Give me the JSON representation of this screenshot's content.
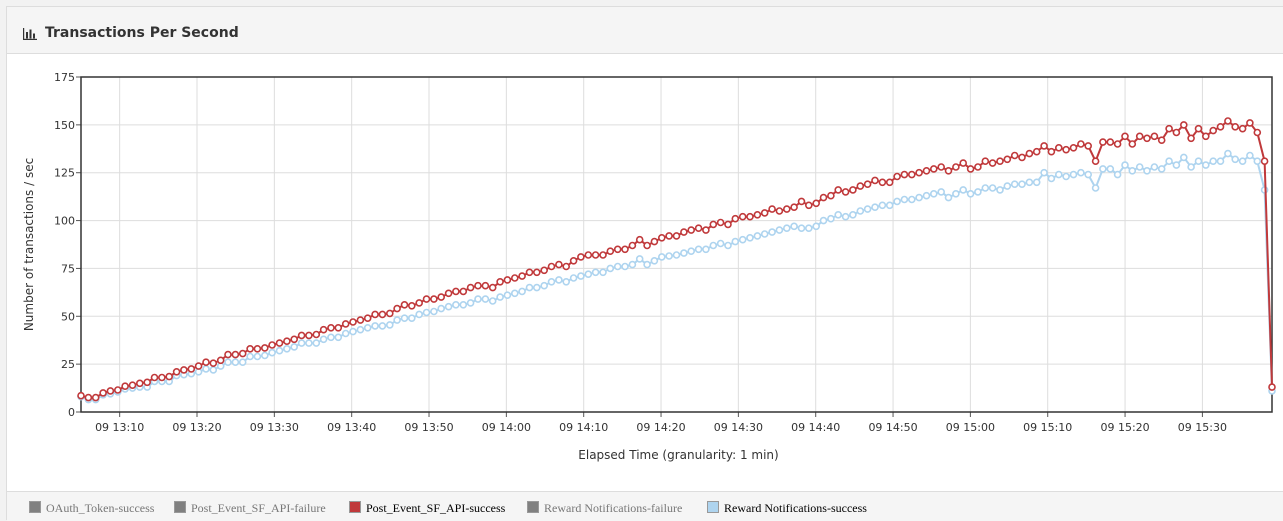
{
  "panel": {
    "title": "Transactions Per Second",
    "icon": "bar-chart-icon"
  },
  "chart_data": {
    "type": "line",
    "title": "",
    "xlabel": "Elapsed Time (granularity: 1 min)",
    "ylabel": "Number of transactions / sec",
    "ylim": [
      0,
      175
    ],
    "yticks": [
      "0",
      "25",
      "50",
      "75",
      "100",
      "125",
      "150",
      "175"
    ],
    "x_start": "09 13:05",
    "x_end": "09 15:39",
    "xticks": [
      "09 13:10",
      "09 13:20",
      "09 13:30",
      "09 13:40",
      "09 13:50",
      "09 14:00",
      "09 14:10",
      "09 14:20",
      "09 14:30",
      "09 14:40",
      "09 14:50",
      "09 15:00",
      "09 15:10",
      "09 15:20",
      "09 15:30"
    ],
    "grid": true,
    "legend_position": "bottom",
    "series": [
      {
        "name": "Post_Event_SF_API-success",
        "color": "#c0393b",
        "values": [
          8.5,
          7.5,
          7.5,
          10,
          11,
          11.5,
          13.5,
          14,
          15,
          15.5,
          18,
          18,
          18.5,
          21,
          22,
          22.5,
          24,
          26,
          25.5,
          27,
          30,
          30,
          30.5,
          33,
          33,
          33.5,
          35,
          36,
          37,
          38,
          40,
          40,
          40.5,
          43,
          44,
          44,
          46,
          47,
          48,
          49,
          51,
          51,
          51.5,
          54,
          56,
          55.5,
          57,
          59,
          59,
          60,
          62,
          63,
          63,
          65,
          66,
          66,
          65,
          68,
          69,
          70,
          71,
          73,
          73,
          74,
          76,
          77,
          76,
          79,
          81,
          82,
          82,
          82,
          84,
          85,
          85,
          87,
          90,
          87,
          89,
          91,
          92,
          92,
          94,
          95,
          96,
          95,
          98,
          99,
          98,
          101,
          102,
          102,
          103,
          104,
          106,
          105,
          106,
          107,
          110,
          108,
          109,
          112,
          113,
          116,
          115,
          116,
          118,
          119,
          121,
          120,
          120,
          123,
          124,
          124,
          125,
          126,
          127,
          128,
          126,
          128,
          130,
          127,
          128,
          131,
          130,
          131,
          132,
          134,
          133,
          135,
          136,
          139,
          136,
          138,
          137,
          138,
          140,
          139,
          131,
          141,
          141,
          140,
          144,
          140,
          144,
          143,
          144,
          142,
          148,
          146,
          150,
          143,
          148,
          144,
          147,
          149,
          152,
          149,
          148,
          151,
          146,
          131,
          13
        ]
      },
      {
        "name": "Reward Notifications-success",
        "color": "#aed4ef",
        "values": [
          8,
          6.5,
          6.5,
          9,
          9.5,
          10.5,
          12,
          12.5,
          13,
          13,
          16,
          16,
          16,
          19,
          19.5,
          20,
          21,
          22.5,
          22,
          24,
          26,
          26,
          26,
          29,
          29,
          29.5,
          31,
          32,
          33,
          34,
          36,
          36,
          36,
          38,
          39,
          39,
          41,
          42,
          43,
          44,
          45,
          45,
          45.5,
          48,
          49,
          49,
          51,
          52,
          52.5,
          54,
          55,
          56,
          56,
          57,
          59,
          59,
          58,
          60,
          61,
          62,
          63,
          65,
          65,
          66,
          68,
          69,
          68,
          70,
          71,
          72,
          73,
          73,
          75,
          76,
          76,
          77,
          80,
          77,
          79,
          81,
          81.5,
          82,
          83,
          84,
          85,
          85,
          87,
          88,
          87,
          89,
          90,
          91,
          92,
          93,
          94,
          95,
          96,
          97,
          96,
          96,
          97,
          100,
          101,
          103,
          102,
          103,
          105,
          106,
          107,
          108,
          108,
          110,
          111,
          111,
          112,
          113,
          114,
          115,
          112,
          114,
          116,
          114,
          115,
          117,
          117,
          116,
          118,
          119,
          119,
          120,
          120,
          125,
          122,
          124,
          123,
          124,
          125,
          124,
          117,
          127,
          127,
          124,
          129,
          126,
          128,
          126,
          128,
          127,
          131,
          129,
          133,
          128,
          131,
          129,
          131,
          131,
          135,
          132,
          131,
          134,
          131,
          116,
          11
        ]
      }
    ],
    "legend": [
      {
        "label": "OAuth_Token-success",
        "color": "#808080",
        "active": false
      },
      {
        "label": "Post_Event_SF_API-failure",
        "color": "#808080",
        "active": false
      },
      {
        "label": "Post_Event_SF_API-success",
        "color": "#c0393b",
        "active": true
      },
      {
        "label": "Reward Notifications-failure",
        "color": "#808080",
        "active": false
      },
      {
        "label": "Reward Notifications-success",
        "color": "#aed4ef",
        "active": true
      }
    ]
  }
}
